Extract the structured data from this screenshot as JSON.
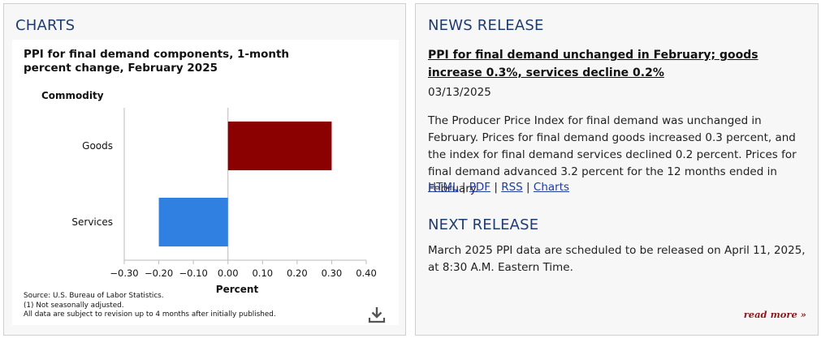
{
  "charts_section": {
    "title": "CHARTS",
    "download_icon": "download-icon"
  },
  "chart_data": {
    "type": "bar",
    "orientation": "horizontal",
    "title": "PPI for final demand components, 1-month percent change, February 2025",
    "category_axis_title": "Commodity",
    "xlabel": "Percent",
    "categories": [
      "Goods",
      "Services"
    ],
    "values": [
      0.3,
      -0.2
    ],
    "colors": [
      "#8b0000",
      "#2f80e0"
    ],
    "xlim": [
      -0.3,
      0.4
    ],
    "ticks": [
      -0.3,
      -0.2,
      -0.1,
      0.0,
      0.1,
      0.2,
      0.3,
      0.4
    ],
    "tick_labels": [
      "−0.30",
      "−0.20",
      "−0.10",
      "0.00",
      "0.10",
      "0.20",
      "0.30",
      "0.40"
    ],
    "grid": false,
    "source_notes": [
      "Source: U.S. Bureau of Labor Statistics.",
      "(1) Not seasonally adjusted.",
      "All data are subject to revision up to 4 months after initially published."
    ]
  },
  "news_release": {
    "title": "NEWS RELEASE",
    "headline": "PPI for final demand unchanged in February; goods increase 0.3%, services decline 0.2%",
    "date": "03/13/2025",
    "body": "The Producer Price Index for final demand was unchanged in February. Prices for final demand goods increased 0.3 percent, and the index for final demand services declined 0.2 percent. Prices for final demand advanced 3.2 percent for the 12 months ended in February.",
    "links": [
      {
        "label": "HTML"
      },
      {
        "label": "PDF"
      },
      {
        "label": "RSS"
      },
      {
        "label": "Charts"
      }
    ],
    "separator": "|"
  },
  "next_release": {
    "title": "NEXT RELEASE",
    "text": "March 2025 PPI data are scheduled to be released on April 11, 2025, at 8:30 A.M. Eastern Time.",
    "read_more": "read more »"
  }
}
